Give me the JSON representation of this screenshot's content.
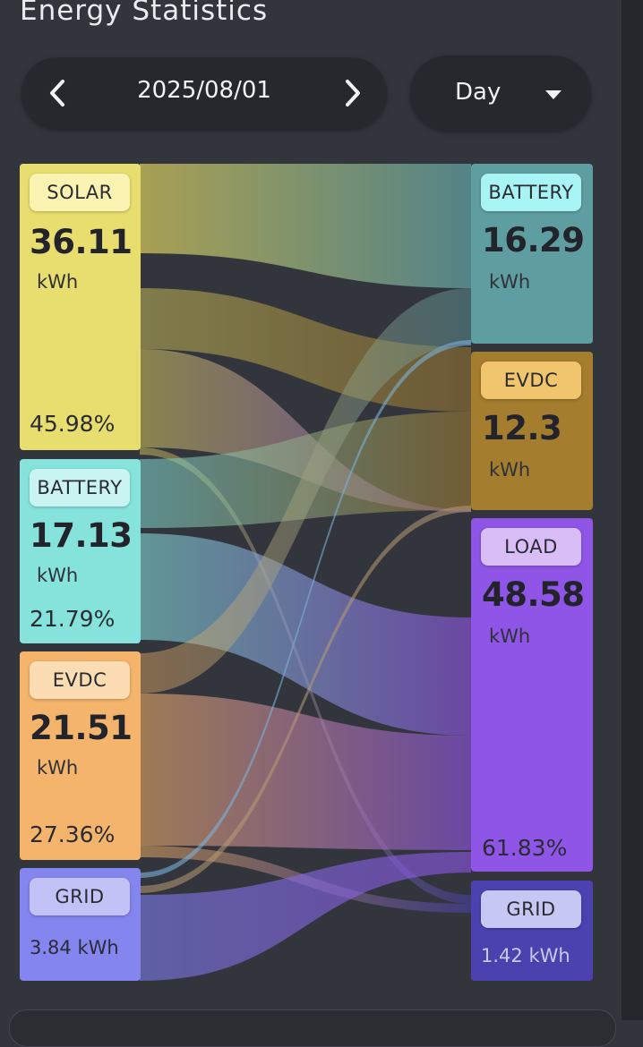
{
  "header": {
    "title": "Energy Statistics",
    "date": "2025/08/01",
    "period": "Day"
  },
  "colors": {
    "background": "#33353d",
    "solar": "#e8dd6f",
    "battery_src": "#86e3dc",
    "evdc_src": "#f4b46c",
    "grid_src": "#8585f0",
    "battery_dst": "#5f9ea0",
    "evdc_dst": "#a47d2e",
    "load_dst": "#8e55e6",
    "grid_dst": "#4b42b0"
  },
  "sources": [
    {
      "id": "solar",
      "label": "SOLAR",
      "value": "36.11",
      "unit": "kWh",
      "percent": "45.98%"
    },
    {
      "id": "battery",
      "label": "BATTERY",
      "value": "17.13",
      "unit": "kWh",
      "percent": "21.79%"
    },
    {
      "id": "evdc",
      "label": "EVDC",
      "value": "21.51",
      "unit": "kWh",
      "percent": "27.36%"
    },
    {
      "id": "grid",
      "label": "GRID",
      "value": "3.84",
      "unit": "kWh"
    }
  ],
  "destinations": [
    {
      "id": "battery",
      "label": "BATTERY",
      "value": "16.29",
      "unit": "kWh"
    },
    {
      "id": "evdc",
      "label": "EVDC",
      "value": "12.3",
      "unit": "kWh"
    },
    {
      "id": "load",
      "label": "LOAD",
      "value": "48.58",
      "unit": "kWh",
      "percent": "61.83%"
    },
    {
      "id": "grid",
      "label": "GRID",
      "value": "1.42",
      "unit": "kWh"
    }
  ]
}
